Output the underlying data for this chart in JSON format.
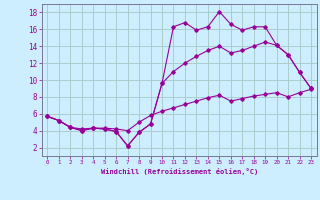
{
  "xlabel": "Windchill (Refroidissement éolien,°C)",
  "bg_color": "#cceeff",
  "grid_color": "#aacccc",
  "line_color": "#990099",
  "x": [
    0,
    1,
    2,
    3,
    4,
    5,
    6,
    7,
    8,
    9,
    10,
    11,
    12,
    13,
    14,
    15,
    16,
    17,
    18,
    19,
    20,
    21,
    22,
    23
  ],
  "line1": [
    5.7,
    5.2,
    4.4,
    4.0,
    4.3,
    4.2,
    3.9,
    2.2,
    3.8,
    4.8,
    9.6,
    16.3,
    16.8,
    15.9,
    16.3,
    18.1,
    16.6,
    15.9,
    16.3,
    16.3,
    14.1,
    13.0,
    10.9,
    9.0
  ],
  "line2": [
    5.7,
    5.2,
    4.4,
    4.0,
    4.3,
    4.2,
    3.9,
    2.2,
    3.8,
    4.8,
    9.6,
    11.0,
    12.0,
    12.8,
    13.5,
    14.0,
    13.2,
    13.5,
    14.0,
    14.5,
    14.1,
    13.0,
    10.9,
    9.0
  ],
  "line3": [
    5.7,
    5.2,
    4.4,
    4.2,
    4.3,
    4.3,
    4.2,
    4.0,
    5.0,
    5.8,
    6.3,
    6.7,
    7.1,
    7.5,
    7.9,
    8.2,
    7.5,
    7.8,
    8.1,
    8.3,
    8.5,
    8.0,
    8.5,
    8.9
  ],
  "xlim": [
    -0.5,
    23.5
  ],
  "ylim": [
    1,
    19
  ],
  "xticks": [
    0,
    1,
    2,
    3,
    4,
    5,
    6,
    7,
    8,
    9,
    10,
    11,
    12,
    13,
    14,
    15,
    16,
    17,
    18,
    19,
    20,
    21,
    22,
    23
  ],
  "yticks": [
    2,
    4,
    6,
    8,
    10,
    12,
    14,
    16,
    18
  ],
  "xtick_labels": [
    "0",
    "1",
    "2",
    "3",
    "4",
    "5",
    "6",
    "7",
    "8",
    "9",
    "10",
    "11",
    "12",
    "13",
    "14",
    "15",
    "16",
    "17",
    "18",
    "19",
    "20",
    "21",
    "22",
    "23"
  ]
}
